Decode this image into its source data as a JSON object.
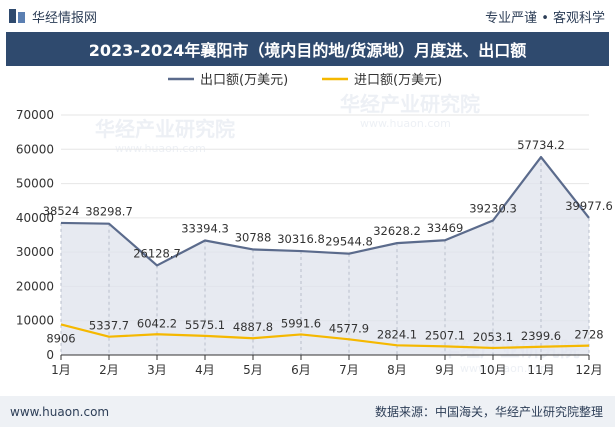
{
  "header": {
    "brand_name": "华经情报网",
    "tagline": "专业严谨 • 客观科学"
  },
  "footer": {
    "url": "www.huaon.com",
    "source": "数据来源：中国海关，华经产业研究院整理"
  },
  "watermark": {
    "text_cn": "华经产业研究院",
    "text_en": "www.huaon.com"
  },
  "colors": {
    "export": "#5b6b8c",
    "import": "#f5b800",
    "area": "#dfe3ec",
    "grid": "#e6e6e6",
    "title_bg": "#2f4a6e"
  },
  "chart_data": {
    "type": "line",
    "title": "2023-2024年襄阳市（境内目的地/货源地）月度进、出口额",
    "categories": [
      "1月",
      "2月",
      "3月",
      "4月",
      "5月",
      "6月",
      "7月",
      "8月",
      "9月",
      "10月",
      "11月",
      "12月"
    ],
    "series": [
      {
        "name": "出口额(万美元)",
        "values": [
          38524,
          38298.7,
          26128.7,
          33394.3,
          30788,
          30316.8,
          29544.8,
          32628.2,
          33469,
          39230.3,
          57734.2,
          39977.6
        ],
        "labels": [
          "38524",
          "38298.7",
          "26128.7",
          "33394.3",
          "30788",
          "30316.8",
          "29544.8",
          "32628.2",
          "33469",
          "39230.3",
          "57734.2",
          "39977.6"
        ]
      },
      {
        "name": "进口额(万美元)",
        "values": [
          8906,
          5337.7,
          6042.2,
          5575.1,
          4887.8,
          5991.6,
          4577.9,
          2824.1,
          2507.1,
          2053.1,
          2399.6,
          2728
        ],
        "labels": [
          "8906",
          "5337.7",
          "6042.2",
          "5575.1",
          "4887.8",
          "5991.6",
          "4577.9",
          "2824.1",
          "2507.1",
          "2053.1",
          "2399.6",
          "2728"
        ]
      }
    ],
    "yticks": [
      "0",
      "10000",
      "20000",
      "30000",
      "40000",
      "50000",
      "60000",
      "70000"
    ],
    "ylim": [
      0,
      70000
    ],
    "grid": true,
    "legend_position": "top-center"
  }
}
